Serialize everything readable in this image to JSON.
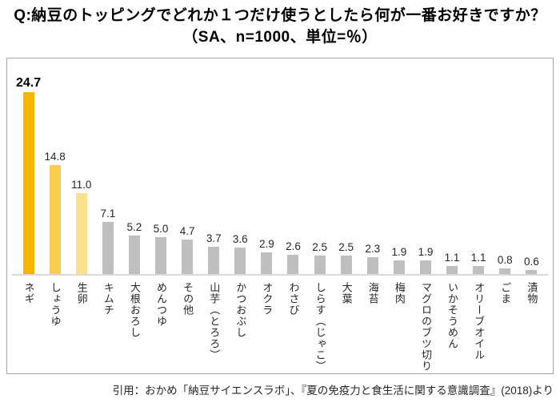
{
  "title": {
    "line1": "Q:納豆のトッピングでどれか１つだけ使うとしたら何が一番お好きですか？",
    "line2": "（SA、n=1000、単位=％）"
  },
  "footer": {
    "citation": "引用：おかめ「納豆サイエンスラボ」、『夏の免疫力と食生活に関する意識調査』(2018)より"
  },
  "colors": {
    "bar_rank1": "#f8b500",
    "bar_rank2": "#facc52",
    "bar_rank3": "#fbe18d",
    "bar_default": "#bfbfbf",
    "axis_line": "#d9d9d9",
    "chart_border": "#a6a6a6",
    "text": "#262626"
  },
  "chart_data": {
    "type": "bar",
    "title": "Q:納豆のトッピングでどれか１つだけ使うとしたら何が一番お好きですか？（SA、n=1000、単位=％）",
    "sample_n": 1000,
    "unit": "%",
    "ylim": [
      0,
      26
    ],
    "grid": false,
    "legend": false,
    "categories": [
      "ネギ",
      "しょうゆ",
      "生卵",
      "キムチ",
      "大根おろし",
      "めんつゆ",
      "その他",
      "山芋（とろろ）",
      "かつおぶし",
      "オクラ",
      "わさび",
      "しらす（じゃこ）",
      "大葉",
      "海苔",
      "梅肉",
      "マグロのブツ切り",
      "いかそうめん",
      "オリーブオイル",
      "ごま",
      "漬物"
    ],
    "values": [
      24.7,
      14.8,
      11.0,
      7.1,
      5.2,
      5.0,
      4.7,
      3.7,
      3.6,
      2.9,
      2.6,
      2.5,
      2.5,
      2.3,
      1.9,
      1.9,
      1.1,
      1.1,
      0.8,
      0.6
    ],
    "value_labels": [
      "24.7",
      "14.8",
      "11.0",
      "7.1",
      "5.2",
      "5.0",
      "4.7",
      "3.7",
      "3.6",
      "2.9",
      "2.6",
      "2.5",
      "2.5",
      "2.3",
      "1.9",
      "1.9",
      "1.1",
      "1.1",
      "0.8",
      "0.6"
    ],
    "bar_colors": [
      "#f8b500",
      "#facc52",
      "#fbe18d",
      "#bfbfbf",
      "#bfbfbf",
      "#bfbfbf",
      "#bfbfbf",
      "#bfbfbf",
      "#bfbfbf",
      "#bfbfbf",
      "#bfbfbf",
      "#bfbfbf",
      "#bfbfbf",
      "#bfbfbf",
      "#bfbfbf",
      "#bfbfbf",
      "#bfbfbf",
      "#bfbfbf",
      "#bfbfbf",
      "#bfbfbf"
    ],
    "emphasized_value_index": 0
  }
}
